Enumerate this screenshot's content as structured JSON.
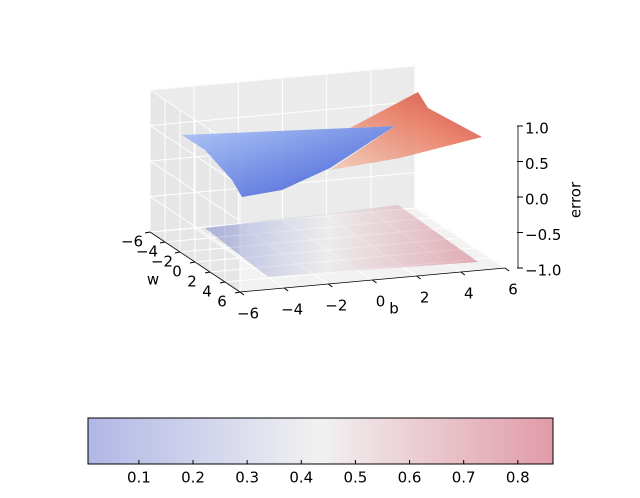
{
  "chart_data": {
    "type": "surface",
    "xlabel": "b",
    "ylabel": "w",
    "zlabel": "error",
    "xlim": [
      -6,
      6
    ],
    "xticks": [
      {
        "value": -6,
        "label": "−6"
      },
      {
        "value": -4,
        "label": "−4"
      },
      {
        "value": -2,
        "label": "−2"
      },
      0,
      2,
      4,
      6
    ],
    "ylim": [
      -6,
      6
    ],
    "yticks": [
      {
        "value": -6,
        "label": "−6"
      },
      {
        "value": -4,
        "label": "−4"
      },
      {
        "value": -2,
        "label": "−2"
      },
      0,
      2,
      4,
      6
    ],
    "zlim": [
      -1,
      1
    ],
    "zticks": [
      {
        "value": -1,
        "label": "−1.0"
      },
      {
        "value": -0.5,
        "label": "−0.5"
      },
      {
        "value": 0,
        "label": "0.0"
      },
      {
        "value": 0.5,
        "label": "0.5"
      },
      {
        "value": 1,
        "label": "1.0"
      }
    ],
    "colorbar": {
      "lim": [
        0.006,
        0.865
      ],
      "ticks": [
        0.1,
        0.2,
        0.3,
        0.4,
        0.5,
        0.6,
        0.7,
        0.8
      ]
    },
    "colormap": [
      "#3b4cc0",
      "#dddddd",
      "#b40426"
    ]
  }
}
